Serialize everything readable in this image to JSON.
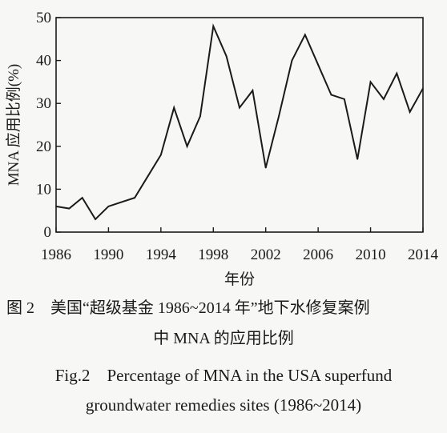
{
  "chart_data": {
    "type": "line",
    "x": [
      1986,
      1987,
      1988,
      1989,
      1990,
      1991,
      1992,
      1993,
      1994,
      1995,
      1996,
      1997,
      1998,
      1999,
      2000,
      2001,
      2002,
      2003,
      2004,
      2005,
      2006,
      2007,
      2008,
      2009,
      2010,
      2011,
      2012,
      2013,
      2014
    ],
    "series": [
      {
        "values": [
          6,
          5.5,
          8,
          3,
          6,
          7,
          8,
          13,
          18,
          29,
          20,
          27,
          48,
          41,
          29,
          33,
          15,
          27,
          40,
          46,
          39,
          32,
          31,
          17,
          35,
          31,
          37,
          28,
          33.5
        ]
      }
    ],
    "xlabel": "年份",
    "ylabel": "MNA 应用比例(%)",
    "xlim": [
      1986,
      2014
    ],
    "ylim": [
      0,
      50
    ],
    "x_ticks": [
      "1986",
      "1990",
      "1994",
      "1998",
      "2002",
      "2006",
      "2010",
      "2014"
    ],
    "y_ticks": [
      "0",
      "10",
      "20",
      "30",
      "40",
      "50"
    ],
    "grid": false,
    "line_color": "#1a1a1a"
  },
  "caption": {
    "cn_line1": "图 2　美国“超级基金 1986~2014 年”地下水修复案例",
    "cn_line2": "中 MNA 的应用比例",
    "en_line1": "Fig.2　Percentage of MNA in the USA superfund",
    "en_line2": "groundwater remedies sites (1986~2014)"
  }
}
